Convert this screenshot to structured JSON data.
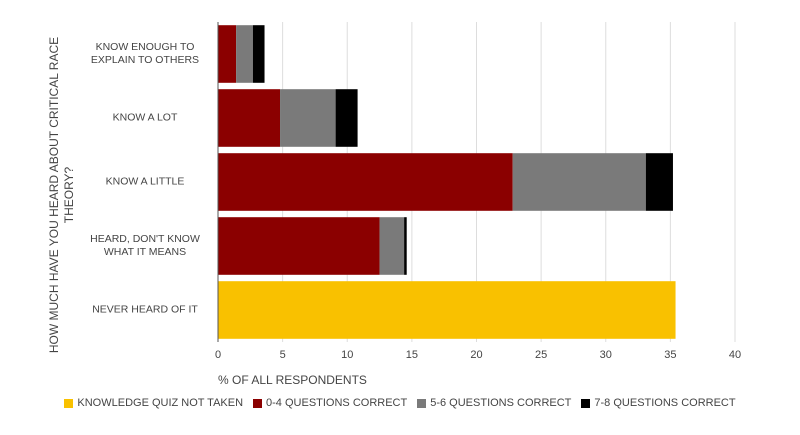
{
  "chart_data": {
    "type": "stacked-barh",
    "xlabel": "% OF ALL RESPONDENTS",
    "ylabel": "HOW MUCH HAVE YOU HEARD ABOUT CRITICAL RACE THEORY?",
    "categories": [
      "KNOW ENOUGH TO EXPLAIN TO OTHERS",
      "KNOW A LOT",
      "KNOW A LITTLE",
      "HEARD, DON'T KNOW WHAT IT MEANS",
      "NEVER HEARD OF IT"
    ],
    "series": [
      {
        "name": "KNOWLEDGE QUIZ NOT TAKEN",
        "color": "#f9c100",
        "values": [
          null,
          null,
          null,
          null,
          35.4
        ]
      },
      {
        "name": "0-4 QUESTIONS CORRECT",
        "color": "#8b0000",
        "values": [
          1.4,
          4.8,
          22.8,
          12.5,
          null
        ]
      },
      {
        "name": "5-6 QUESTIONS CORRECT",
        "color": "#7a7a7a",
        "values": [
          1.3,
          4.3,
          10.3,
          1.9,
          null
        ]
      },
      {
        "name": "7-8 QUESTIONS CORRECT",
        "color": "#000000",
        "values": [
          0.9,
          1.7,
          2.1,
          0.2,
          null
        ]
      }
    ],
    "xlim": [
      0,
      40
    ],
    "xticks": [
      0,
      5,
      10,
      15,
      20,
      25,
      30,
      35,
      40
    ],
    "grid": true
  }
}
